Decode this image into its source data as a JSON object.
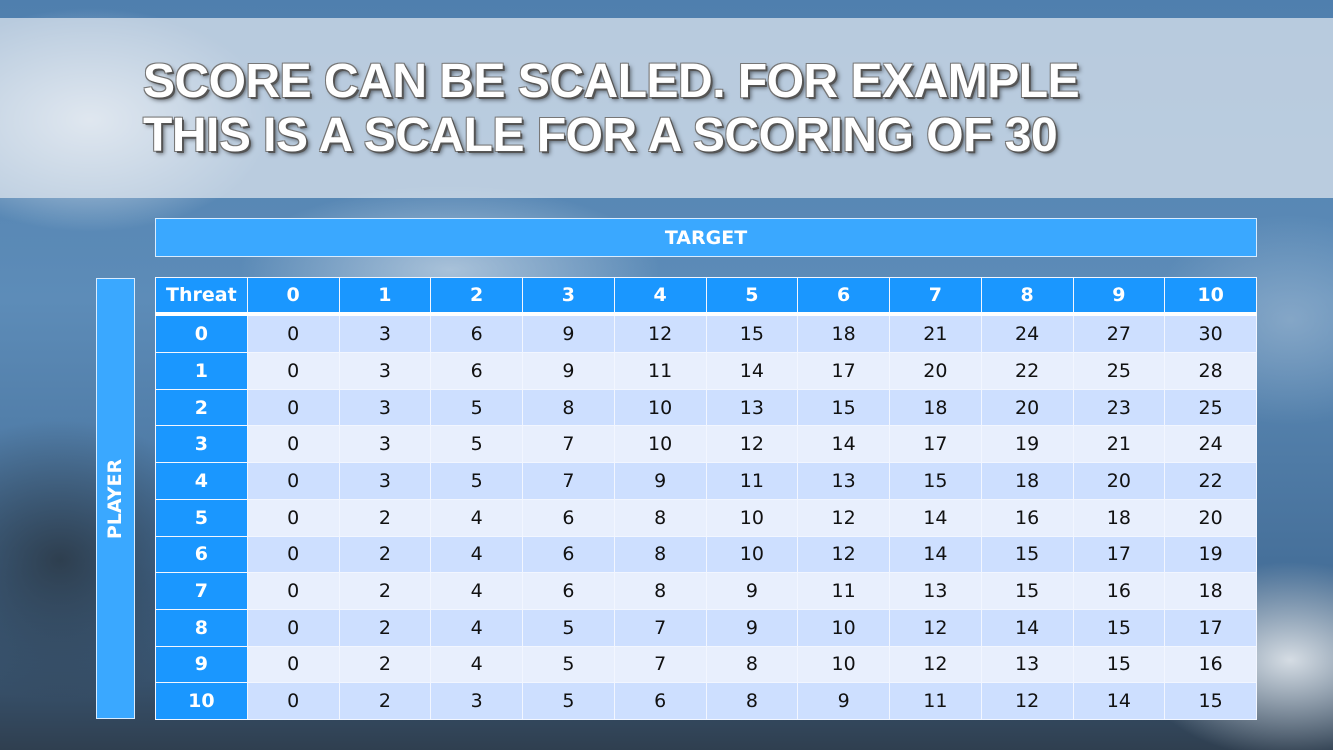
{
  "title": {
    "line1": "SCORE CAN BE SCALED. FOR EXAMPLE",
    "line2": "THIS IS A SCALE FOR A SCORING OF 30"
  },
  "target_label": "TARGET",
  "player_label": "PLAYER",
  "table": {
    "corner": "Threat",
    "columns": [
      "0",
      "1",
      "2",
      "3",
      "4",
      "5",
      "6",
      "7",
      "8",
      "9",
      "10"
    ],
    "rows": [
      {
        "label": "0",
        "values": [
          "0",
          "3",
          "6",
          "9",
          "12",
          "15",
          "18",
          "21",
          "24",
          "27",
          "30"
        ]
      },
      {
        "label": "1",
        "values": [
          "0",
          "3",
          "6",
          "9",
          "11",
          "14",
          "17",
          "20",
          "22",
          "25",
          "28"
        ]
      },
      {
        "label": "2",
        "values": [
          "0",
          "3",
          "5",
          "8",
          "10",
          "13",
          "15",
          "18",
          "20",
          "23",
          "25"
        ]
      },
      {
        "label": "3",
        "values": [
          "0",
          "3",
          "5",
          "7",
          "10",
          "12",
          "14",
          "17",
          "19",
          "21",
          "24"
        ]
      },
      {
        "label": "4",
        "values": [
          "0",
          "3",
          "5",
          "7",
          "9",
          "11",
          "13",
          "15",
          "18",
          "20",
          "22"
        ]
      },
      {
        "label": "5",
        "values": [
          "0",
          "2",
          "4",
          "6",
          "8",
          "10",
          "12",
          "14",
          "16",
          "18",
          "20"
        ]
      },
      {
        "label": "6",
        "values": [
          "0",
          "2",
          "4",
          "6",
          "8",
          "10",
          "12",
          "14",
          "15",
          "17",
          "19"
        ]
      },
      {
        "label": "7",
        "values": [
          "0",
          "2",
          "4",
          "6",
          "8",
          "9",
          "11",
          "13",
          "15",
          "16",
          "18"
        ]
      },
      {
        "label": "8",
        "values": [
          "0",
          "2",
          "4",
          "5",
          "7",
          "9",
          "10",
          "12",
          "14",
          "15",
          "17"
        ]
      },
      {
        "label": "9",
        "values": [
          "0",
          "2",
          "4",
          "5",
          "7",
          "8",
          "10",
          "12",
          "13",
          "15",
          "16"
        ]
      },
      {
        "label": "10",
        "values": [
          "0",
          "2",
          "3",
          "5",
          "6",
          "8",
          "9",
          "11",
          "12",
          "14",
          "15"
        ]
      }
    ]
  },
  "colors": {
    "header": "#1a97ff",
    "bar": "#3aa8ff",
    "row_a": "#cddfff",
    "row_b": "#e8effd"
  }
}
